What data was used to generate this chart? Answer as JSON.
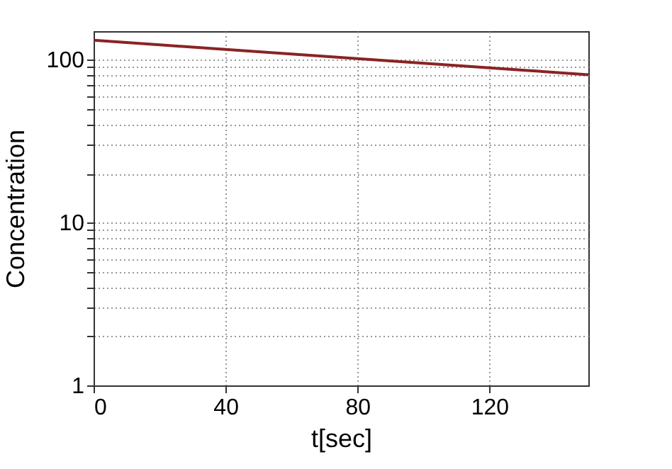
{
  "chart_data": {
    "type": "line",
    "xlabel": "t[sec]",
    "ylabel": "Concentration",
    "x": [
      0,
      10,
      20,
      30,
      40,
      50,
      60,
      70,
      80,
      90,
      100,
      110,
      120,
      130,
      140,
      150
    ],
    "series": [
      {
        "color": "#8b2323",
        "values": [
          132,
          127.8,
          123.7,
          119.7,
          115.9,
          112.2,
          108.6,
          105.1,
          101.7,
          98.5,
          95.3,
          92.3,
          89.3,
          86.5,
          83.7,
          81
        ]
      }
    ],
    "xlim": [
      0,
      150
    ],
    "xticks": [
      0,
      40,
      80,
      120
    ],
    "ylim": [
      1,
      150
    ],
    "yticks": [
      1,
      {
        "value": 2,
        "label": null
      },
      {
        "value": 3,
        "label": null
      },
      {
        "value": 4,
        "label": null
      },
      {
        "value": 5,
        "label": null
      },
      {
        "value": 6,
        "label": null
      },
      {
        "value": 7,
        "label": null
      },
      {
        "value": 8,
        "label": null
      },
      {
        "value": 9,
        "label": null
      },
      10,
      {
        "value": 20,
        "label": null
      },
      {
        "value": 30,
        "label": null
      },
      {
        "value": 40,
        "label": null
      },
      {
        "value": 50,
        "label": null
      },
      {
        "value": 60,
        "label": null
      },
      {
        "value": 70,
        "label": null
      },
      {
        "value": 80,
        "label": null
      },
      {
        "value": 90,
        "label": null
      },
      100
    ],
    "log": true,
    "grid": true,
    "line_style": "solid"
  }
}
